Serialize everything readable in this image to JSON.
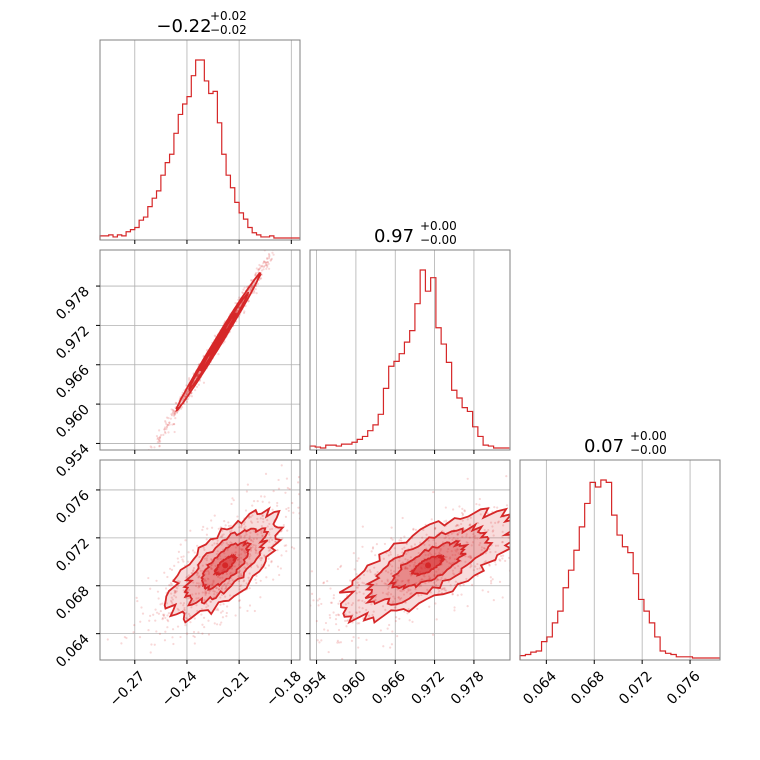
{
  "chart_data": {
    "type": "corner",
    "color": "#d62728",
    "parameters": [
      {
        "title_main": "−0.22",
        "title_sup": "+0.02",
        "title_sub": "−0.02",
        "range": [
          -0.29,
          -0.175
        ],
        "ticks": [
          -0.27,
          -0.24,
          -0.21,
          -0.18
        ],
        "tick_labels": [
          "−0.27",
          "−0.24",
          "−0.21",
          "−0.18"
        ],
        "hist": {
          "bin_edges_start": -0.29,
          "bin_width": 0.0025,
          "counts": [
            2,
            2,
            3,
            1,
            3,
            2,
            6,
            8,
            10,
            17,
            20,
            30,
            38,
            45,
            60,
            72,
            80,
            100,
            118,
            128,
            135,
            155,
            170,
            170,
            150,
            138,
            140,
            110,
            80,
            60,
            48,
            34,
            24,
            18,
            10,
            5,
            3,
            1,
            1,
            2,
            0,
            0,
            0,
            0,
            0,
            0
          ]
        }
      },
      {
        "title_main": "0.97",
        "title_sup": "+0.00",
        "title_sub": "−0.00",
        "range": [
          0.953,
          0.9835
        ],
        "ticks": [
          0.954,
          0.96,
          0.966,
          0.972,
          0.978
        ],
        "tick_labels": [
          "0.954",
          "0.960",
          "0.966",
          "0.972",
          "0.978"
        ],
        "hist": {
          "bin_edges_start": 0.953,
          "bin_width": 0.0008,
          "counts": [
            2,
            1,
            0,
            3,
            3,
            2,
            4,
            4,
            6,
            9,
            12,
            18,
            24,
            35,
            62,
            85,
            90,
            98,
            110,
            122,
            150,
            185,
            163,
            177,
            125,
            108,
            89,
            60,
            52,
            42,
            38,
            22,
            12,
            3,
            2,
            0,
            0,
            0
          ]
        }
      },
      {
        "title_main": "0.07",
        "title_sup": "+0.00",
        "title_sub": "−0.00",
        "range": [
          0.0618,
          0.0785
        ],
        "ticks": [
          0.064,
          0.068,
          0.072,
          0.076
        ],
        "tick_labels": [
          "0.064",
          "0.068",
          "0.072",
          "0.076"
        ],
        "hist": {
          "bin_edges_start": 0.0618,
          "bin_width": 0.00045,
          "counts": [
            2,
            3,
            5,
            6,
            14,
            18,
            30,
            40,
            60,
            75,
            92,
            112,
            132,
            150,
            146,
            152,
            150,
            122,
            105,
            95,
            90,
            72,
            50,
            40,
            30,
            18,
            6,
            4,
            3,
            1,
            1,
            1,
            0,
            0,
            0,
            0,
            0,
            0
          ]
        }
      }
    ],
    "pairs": [
      {
        "x_param": 0,
        "y_param": 1,
        "center": [
          -0.222,
          0.9695
        ],
        "sigma": [
          0.012,
          0.0052
        ],
        "correlation": 0.995
      },
      {
        "x_param": 0,
        "y_param": 2,
        "center": [
          -0.218,
          0.0697
        ],
        "sigma": [
          0.016,
          0.0022
        ],
        "correlation": 0.72
      },
      {
        "x_param": 1,
        "y_param": 2,
        "center": [
          0.971,
          0.0697
        ],
        "sigma": [
          0.0065,
          0.0022
        ],
        "correlation": 0.72
      }
    ],
    "grid": true
  }
}
